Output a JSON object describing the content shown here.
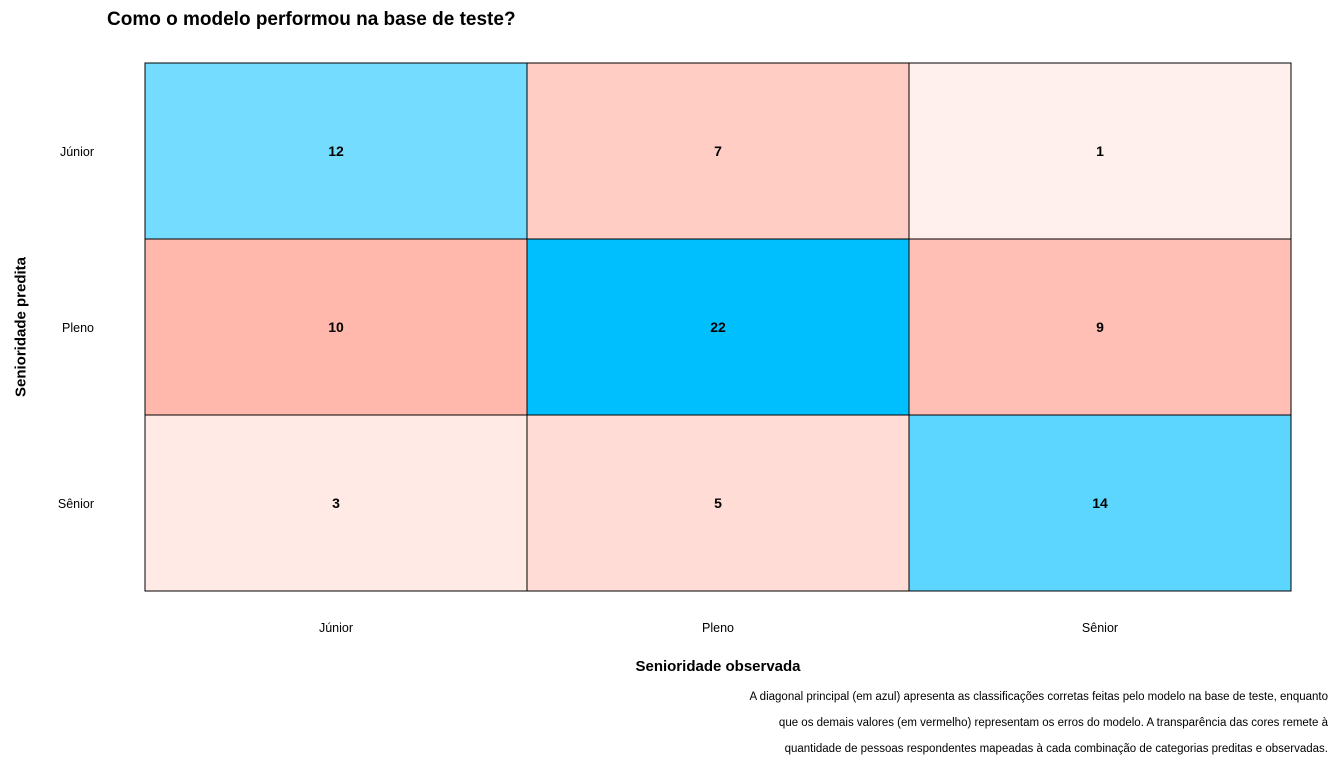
{
  "title": "Como o modelo performou na base de teste?",
  "chart_data": {
    "type": "heatmap",
    "title": "Como o modelo performou na base de teste?",
    "xlabel": "Senioridade observada",
    "ylabel": "Senioridade predita",
    "x_categories": [
      "Júnior",
      "Pleno",
      "Sênior"
    ],
    "y_categories": [
      "Júnior",
      "Pleno",
      "Sênior"
    ],
    "values": [
      [
        12,
        7,
        1
      ],
      [
        10,
        22,
        9
      ],
      [
        3,
        5,
        14
      ]
    ],
    "colors": {
      "correct": "#00BFFF",
      "error": "#FF6347"
    },
    "legend": "none"
  },
  "caption": [
    "A diagonal principal (em azul) apresenta as classificações corretas feitas pelo modelo na base de teste, enquanto",
    "que os demais valores (em vermelho) representam os erros do modelo. A transparência das cores remete à",
    "quantidade de pessoas respondentes mapeadas à cada combinação de categorias preditas e observadas."
  ]
}
